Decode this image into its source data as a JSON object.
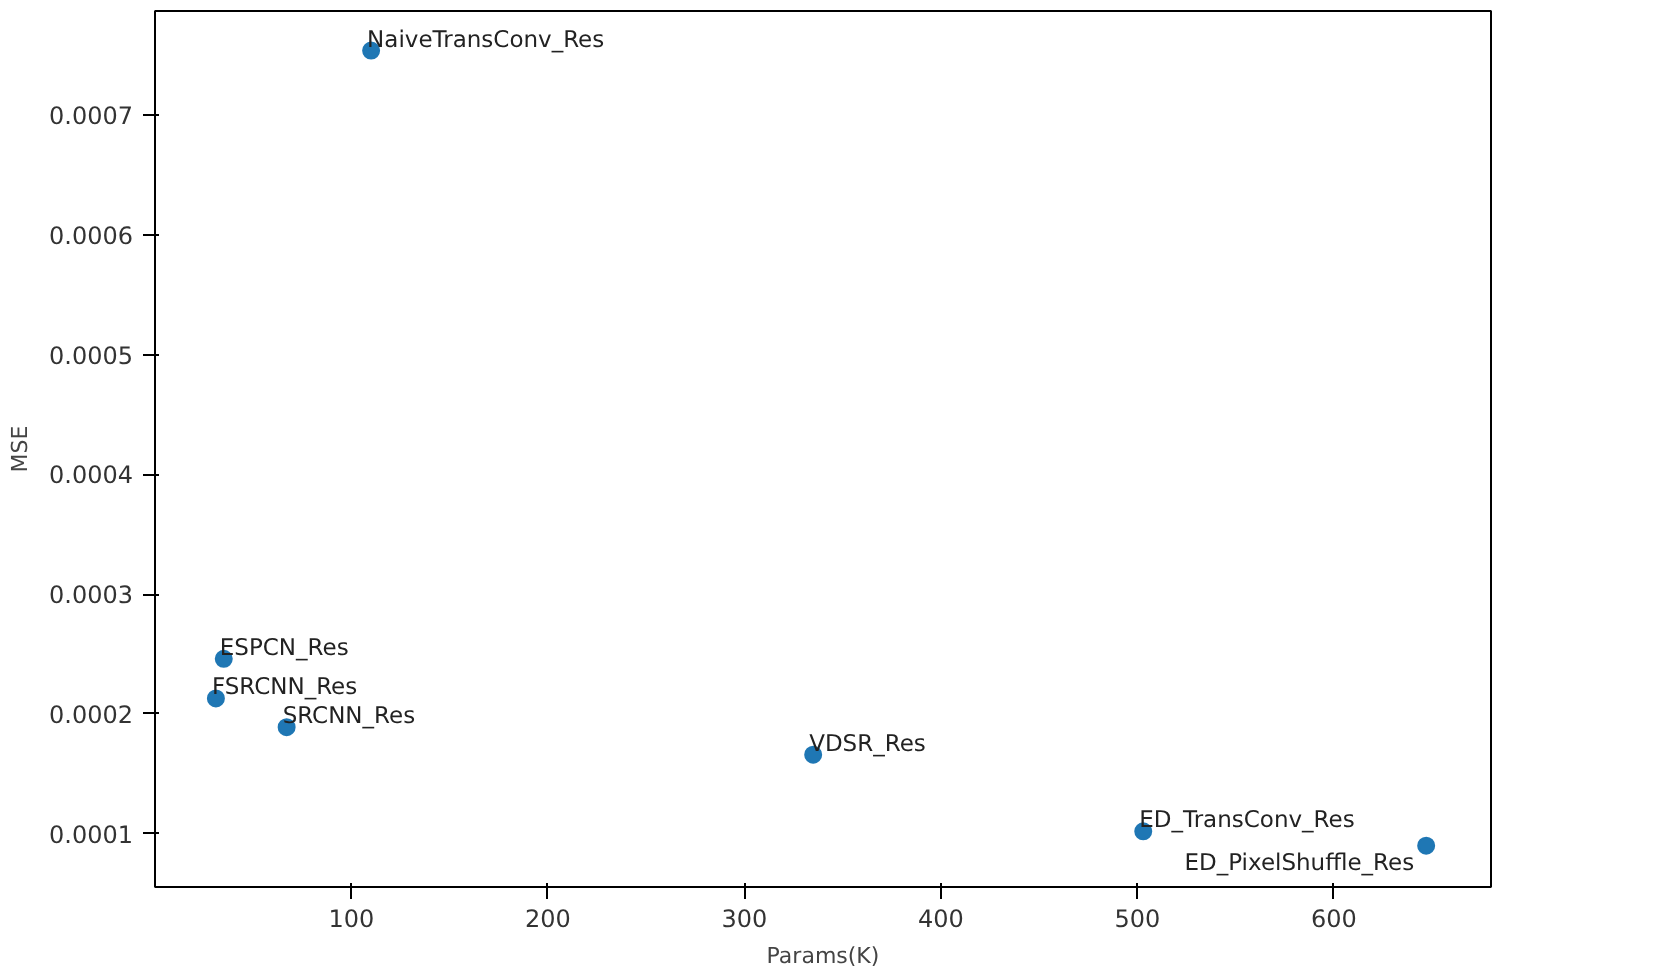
{
  "chart_data": {
    "type": "scatter",
    "xlabel": "Params(K)",
    "ylabel": "MSE",
    "x": [
      110,
      35,
      31,
      67,
      335,
      503,
      647
    ],
    "series": [
      {
        "color": "#1f77b4",
        "values": [
          0.000754,
          0.000246,
          0.000213,
          0.000189,
          0.000166,
          0.000102,
          9e-05
        ]
      }
    ],
    "annotations": [
      {
        "text": "NaiveTransConv_Res",
        "x": 110,
        "y": 0.000754
      },
      {
        "text": "ESPCN_Res",
        "x": 35,
        "y": 0.000246
      },
      {
        "text": "FSRCNN_Res",
        "x": 31,
        "y": 0.000213
      },
      {
        "text": "SRCNN_Res",
        "x": 67,
        "y": 0.000189
      },
      {
        "text": "VDSR_Res",
        "x": 335,
        "y": 0.000166
      },
      {
        "text": "ED_TransConv_Res",
        "x": 503,
        "y": 0.000102
      },
      {
        "text": "ED_PixelShuffle_Res",
        "x": 647,
        "y": 9e-05
      }
    ],
    "xlim": [
      0,
      680
    ],
    "ylim": [
      5.55e-05,
      0.000787
    ],
    "xticks": [
      100,
      200,
      300,
      400,
      500,
      600
    ],
    "yticks": [
      0.0001,
      0.0002,
      0.0003,
      0.0004,
      0.0005,
      0.0006,
      0.0007
    ],
    "grid": false,
    "marker": "circle"
  }
}
